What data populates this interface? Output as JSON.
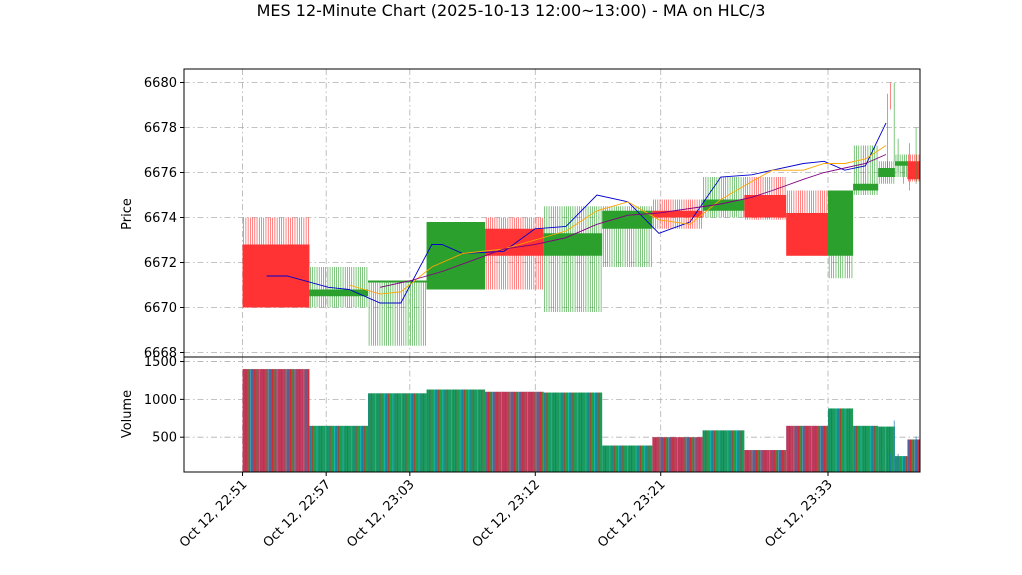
{
  "chart_data": {
    "type": "candlestick",
    "title": "MES 12-Minute Chart (2025-10-13 12:00~13:00) - MA on HLC/3",
    "price_panel": {
      "ylabel": "Price",
      "ylim": [
        6667.8,
        6680.6
      ],
      "yticks": [
        6668,
        6670,
        6672,
        6674,
        6676,
        6678,
        6680
      ],
      "up_color": "#2ca02c",
      "down_color": "#ff3333"
    },
    "volume_panel": {
      "ylabel": "Volume",
      "ylim": [
        40,
        1560
      ],
      "yticks": [
        500,
        1000,
        1500
      ],
      "tick_labels": [
        "500",
        "1000",
        "1500"
      ],
      "bar_colors": [
        "#1f77b4",
        "#d62728",
        "#2ca02c",
        "#17becf"
      ]
    },
    "xlim": [
      22.78,
      23.66
    ],
    "xticks": [
      {
        "x": 22.85,
        "label": "Oct 12, 22:51"
      },
      {
        "x": 22.95,
        "label": "Oct 12, 22:57"
      },
      {
        "x": 23.05,
        "label": "Oct 12, 23:03"
      },
      {
        "x": 23.2,
        "label": "Oct 12, 23:12"
      },
      {
        "x": 23.35,
        "label": "Oct 12, 23:21"
      },
      {
        "x": 23.55,
        "label": "Oct 12, 23:33"
      }
    ],
    "candles": [
      {
        "t0": 22.85,
        "t1": 22.93,
        "open": 6672.8,
        "high": 6674.0,
        "low": 6670.0,
        "close": 6670.0,
        "volume": 1400
      },
      {
        "t0": 22.93,
        "t1": 23.0,
        "open": 6670.5,
        "high": 6671.8,
        "low": 6670.0,
        "close": 6670.8,
        "volume": 650
      },
      {
        "t0": 23.0,
        "t1": 23.07,
        "open": 6671.2,
        "high": 6671.2,
        "low": 6668.3,
        "close": 6671.2,
        "volume": 1080
      },
      {
        "t0": 23.07,
        "t1": 23.14,
        "open": 6670.8,
        "high": 6673.8,
        "low": 6670.8,
        "close": 6673.8,
        "volume": 1130
      },
      {
        "t0": 23.14,
        "t1": 23.21,
        "open": 6673.5,
        "high": 6674.0,
        "low": 6670.8,
        "close": 6672.3,
        "volume": 1100
      },
      {
        "t0": 23.21,
        "t1": 23.28,
        "open": 6672.3,
        "high": 6674.5,
        "low": 6669.8,
        "close": 6673.3,
        "volume": 1090
      },
      {
        "t0": 23.28,
        "t1": 23.34,
        "open": 6673.5,
        "high": 6674.5,
        "low": 6671.8,
        "close": 6674.3,
        "volume": 390
      },
      {
        "t0": 23.34,
        "t1": 23.4,
        "open": 6674.3,
        "high": 6674.8,
        "low": 6673.5,
        "close": 6674.0,
        "volume": 500
      },
      {
        "t0": 23.4,
        "t1": 23.45,
        "open": 6674.3,
        "high": 6675.8,
        "low": 6674.0,
        "close": 6674.8,
        "volume": 590
      },
      {
        "t0": 23.45,
        "t1": 23.5,
        "open": 6675.0,
        "high": 6675.8,
        "low": 6673.9,
        "close": 6674.0,
        "volume": 330
      },
      {
        "t0": 23.5,
        "t1": 23.55,
        "open": 6674.2,
        "high": 6675.2,
        "low": 6672.3,
        "close": 6672.3,
        "volume": 650
      },
      {
        "t0": 23.55,
        "t1": 23.58,
        "open": 6672.3,
        "high": 6675.2,
        "low": 6671.3,
        "close": 6675.2,
        "volume": 880
      },
      {
        "t0": 23.58,
        "t1": 23.61,
        "open": 6675.2,
        "high": 6677.2,
        "low": 6675.0,
        "close": 6675.5,
        "volume": 650
      },
      {
        "t0": 23.61,
        "t1": 23.63,
        "open": 6675.8,
        "high": 6676.5,
        "low": 6675.5,
        "close": 6676.2,
        "volume": 640
      },
      {
        "t0": 23.63,
        "t1": 23.645,
        "open": 6676.3,
        "high": 6676.8,
        "low": 6675.8,
        "close": 6676.5,
        "volume": 250
      },
      {
        "t0": 23.645,
        "t1": 23.66,
        "open": 6676.5,
        "high": 6676.8,
        "low": 6675.6,
        "close": 6675.7,
        "volume": 470
      }
    ],
    "tail_candles": [
      {
        "t0": 23.66,
        "t1": 23.672,
        "open": 6675.6,
        "high": 6678.0,
        "low": 6675.5,
        "close": 6677.5,
        "volume": 510
      },
      {
        "t0": 23.672,
        "t1": 23.68,
        "open": 6677.3,
        "high": 6677.3,
        "low": 6675.2,
        "close": 6675.4,
        "volume": 280
      },
      {
        "t0": 23.68,
        "t1": 23.69,
        "open": 6675.5,
        "high": 6676.3,
        "low": 6675.5,
        "close": 6676.0,
        "volume": 190
      },
      {
        "t0": 23.69,
        "t1": 23.697,
        "open": 6676.0,
        "high": 6677.5,
        "low": 6676.0,
        "close": 6676.8,
        "volume": 280
      },
      {
        "t0": 23.697,
        "t1": 23.702,
        "open": 6676.8,
        "high": 6680.0,
        "low": 6676.5,
        "close": 6679.5,
        "volume": 720
      },
      {
        "t0": 23.702,
        "t1": 23.708,
        "open": 6679.3,
        "high": 6680.0,
        "low": 6678.8,
        "close": 6678.8,
        "volume": 280
      },
      {
        "t0": 23.708,
        "t1": 23.712,
        "open": 6678.8,
        "high": 6679.5,
        "low": 6676.0,
        "close": 6678.0,
        "volume": 330
      }
    ],
    "ma_lines": [
      {
        "color": "#0000cc",
        "points": [
          [
            22.88,
            6671.4
          ],
          [
            22.9,
            6671.4
          ],
          [
            22.94,
            6670.9
          ],
          [
            22.96,
            6670.8
          ],
          [
            22.99,
            6670.2
          ],
          [
            23.01,
            6670.2
          ],
          [
            23.04,
            6672.8
          ],
          [
            23.05,
            6672.8
          ],
          [
            23.07,
            6672.4
          ],
          [
            23.11,
            6672.5
          ],
          [
            23.14,
            6673.5
          ],
          [
            23.17,
            6673.6
          ],
          [
            23.2,
            6675.0
          ],
          [
            23.23,
            6674.7
          ],
          [
            23.26,
            6673.3
          ],
          [
            23.29,
            6673.8
          ],
          [
            23.32,
            6675.8
          ],
          [
            23.35,
            6675.9
          ],
          [
            23.37,
            6676.1
          ],
          [
            23.4,
            6676.4
          ],
          [
            23.42,
            6676.5
          ],
          [
            23.44,
            6676.1
          ],
          [
            23.46,
            6676.3
          ],
          [
            23.48,
            6678.2
          ]
        ]
      },
      {
        "color": "#ffa500",
        "points": [
          [
            22.96,
            6671.0
          ],
          [
            22.99,
            6670.6
          ],
          [
            23.01,
            6670.7
          ],
          [
            23.04,
            6671.8
          ],
          [
            23.07,
            6672.4
          ],
          [
            23.11,
            6672.6
          ],
          [
            23.14,
            6673.0
          ],
          [
            23.17,
            6673.4
          ],
          [
            23.2,
            6674.3
          ],
          [
            23.23,
            6674.7
          ],
          [
            23.26,
            6673.9
          ],
          [
            23.29,
            6673.7
          ],
          [
            23.32,
            6674.8
          ],
          [
            23.35,
            6675.6
          ],
          [
            23.37,
            6676.1
          ],
          [
            23.4,
            6676.1
          ],
          [
            23.42,
            6676.4
          ],
          [
            23.44,
            6676.4
          ],
          [
            23.46,
            6676.6
          ],
          [
            23.48,
            6677.2
          ]
        ]
      },
      {
        "color": "#800080",
        "points": [
          [
            22.99,
            6670.9
          ],
          [
            23.02,
            6671.2
          ],
          [
            23.05,
            6671.6
          ],
          [
            23.08,
            6672.1
          ],
          [
            23.11,
            6672.6
          ],
          [
            23.14,
            6672.8
          ],
          [
            23.17,
            6673.1
          ],
          [
            23.2,
            6673.7
          ],
          [
            23.23,
            6674.1
          ],
          [
            23.26,
            6674.2
          ],
          [
            23.29,
            6674.4
          ],
          [
            23.32,
            6674.6
          ],
          [
            23.35,
            6674.9
          ],
          [
            23.37,
            6675.2
          ],
          [
            23.4,
            6675.7
          ],
          [
            23.42,
            6676.0
          ],
          [
            23.44,
            6676.2
          ],
          [
            23.46,
            6676.4
          ],
          [
            23.48,
            6676.8
          ]
        ]
      }
    ]
  }
}
